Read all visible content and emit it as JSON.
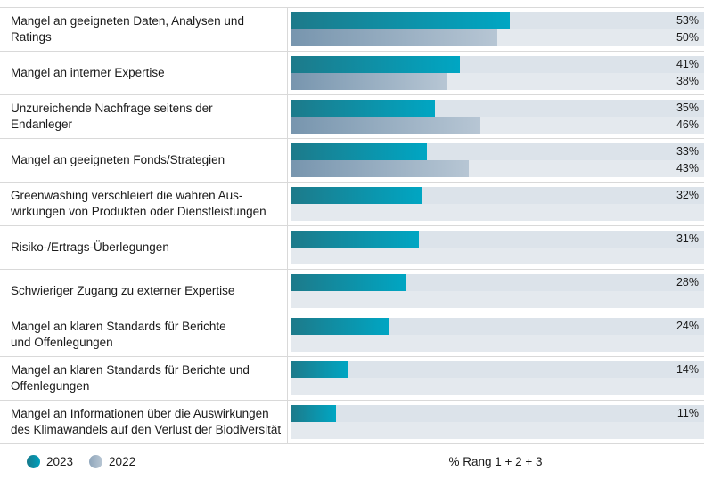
{
  "chart_data": {
    "type": "bar",
    "orientation": "horizontal",
    "title": "",
    "xlabel": "% Rang 1 + 2 + 3",
    "xlim": [
      0,
      100
    ],
    "grid": false,
    "legend_position": "bottom-left",
    "value_suffix": "%",
    "categories": [
      [
        "Mangel an geeigneten Daten, Analysen und",
        "Ratings"
      ],
      [
        "Mangel an interner Expertise"
      ],
      [
        "Unzureichende Nachfrage seitens der",
        "Endanleger"
      ],
      [
        "Mangel an geeigneten Fonds/Strategien"
      ],
      [
        "Greenwashing verschleiert die wahren Aus-",
        "wirkungen von Produkten oder Dienstleistungen"
      ],
      [
        "Risiko-/Ertrags-Überlegungen"
      ],
      [
        "Schwieriger Zugang zu externer Expertise"
      ],
      [
        "Mangel an klaren Standards für Berichte",
        "und Offenlegungen"
      ],
      [
        "Mangel an klaren Standards für Berichte und",
        "Offenlegungen"
      ],
      [
        "Mangel an Informationen über die Auswirkungen",
        "des Klimawandels auf den Verlust der Biodiversität"
      ]
    ],
    "series": [
      {
        "name": "2023",
        "values": [
          53,
          41,
          35,
          33,
          32,
          31,
          28,
          24,
          14,
          11
        ],
        "color_start": "#1d7a8a",
        "color_end": "#00a6c3"
      },
      {
        "name": "2022",
        "values": [
          50,
          38,
          46,
          43,
          null,
          null,
          null,
          null,
          null,
          null
        ],
        "color_start": "#7795ae",
        "color_end": "#b7c6d4"
      }
    ]
  },
  "legend": {
    "items": [
      {
        "label": "2023"
      },
      {
        "label": "2022"
      }
    ]
  },
  "axis_label": "% Rang 1 + 2 + 3",
  "colors": {
    "track_top": "#dce3ea",
    "track_bottom": "#e4e9ee",
    "separator": "#d9d9d9",
    "text": "#1a1a1a"
  }
}
